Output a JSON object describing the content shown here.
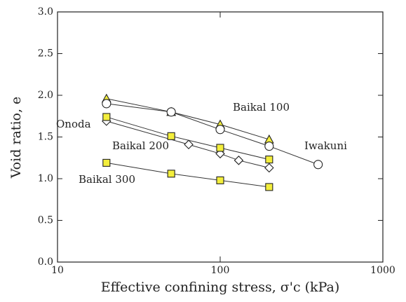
{
  "chart_data": {
    "type": "line",
    "xlabel": "Effective confining stress, σ'c (kPa)",
    "ylabel": "Void ratio, e",
    "xscale": "log",
    "xlim": [
      10,
      1000
    ],
    "xticks": [
      10,
      100,
      1000
    ],
    "ylim": [
      0,
      3
    ],
    "yticks": [
      {
        "value": 0,
        "label": "0.0"
      },
      0.5,
      {
        "value": 1,
        "label": "1.0"
      },
      1.5,
      {
        "value": 2,
        "label": "2.0"
      },
      2.5,
      {
        "value": 3,
        "label": "3.0"
      }
    ],
    "series": [
      {
        "name": "Baikal 100",
        "marker": "triangle",
        "color": "#f3ee3c",
        "x": [
          20,
          50,
          100,
          200
        ],
        "values": [
          1.96,
          1.8,
          1.65,
          1.47
        ]
      },
      {
        "name": "Iwakuni",
        "marker": "circle",
        "color": "#ffffff",
        "x": [
          20,
          50,
          100,
          200,
          400
        ],
        "values": [
          1.9,
          1.8,
          1.59,
          1.39,
          1.17
        ]
      },
      {
        "name": "Onoda",
        "marker": "diamond",
        "color": "#ffffff",
        "x": [
          20,
          64,
          100,
          130,
          200
        ],
        "values": [
          1.69,
          1.41,
          1.3,
          1.22,
          1.13
        ]
      },
      {
        "name": "Baikal 200",
        "marker": "square",
        "color": "#f3ee3c",
        "x": [
          20,
          50,
          100,
          200
        ],
        "values": [
          1.74,
          1.51,
          1.37,
          1.23
        ]
      },
      {
        "name": "Baikal 300",
        "marker": "square",
        "color": "#f3ee3c",
        "x": [
          20,
          50,
          100,
          200
        ],
        "values": [
          1.19,
          1.06,
          0.98,
          0.9
        ]
      }
    ]
  }
}
